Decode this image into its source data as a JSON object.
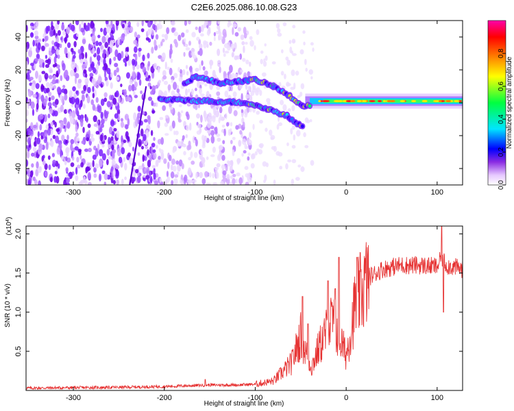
{
  "title": "C2E6.2025.086.10.08.G23",
  "chart_data": [
    {
      "type": "heatmap",
      "xlabel": "Height of straight line (km)",
      "ylabel": "Frequency (Hz)",
      "xlim": [
        -352,
        128
      ],
      "ylim": [
        -50,
        50
      ],
      "xticks": [
        -300,
        -200,
        -100,
        0,
        100
      ],
      "yticks": [
        -40,
        -20,
        0,
        20,
        40
      ],
      "colorbar": {
        "label": "Normalized spectral amplitude",
        "range": [
          0,
          1
        ],
        "ticks": [
          0.0,
          0.2,
          0.4,
          0.6,
          0.8
        ],
        "colormap": [
          "#ffffff",
          "#e6c8ff",
          "#8a2be2",
          "#0000ff",
          "#00e5ff",
          "#00ff40",
          "#ffff00",
          "#ff6a00",
          "#ff0000",
          "#ff00aa"
        ]
      },
      "ridges": [
        {
          "name": "",
          "points": [
            [
              -205,
              2
            ],
            [
              -150,
              1
            ],
            [
              -110,
              0
            ],
            [
              -85,
              -4
            ],
            [
              -65,
              -8
            ],
            [
              -48,
              -15
            ]
          ]
        },
        {
          "name": "",
          "points": [
            [
              -178,
              12
            ],
            [
              -165,
              16
            ],
            [
              -140,
              12
            ],
            [
              -100,
              14
            ],
            [
              -80,
              10
            ],
            [
              -62,
              4
            ],
            [
              -48,
              -2
            ],
            [
              -20,
              0
            ],
            [
              0,
              1
            ],
            [
              60,
              1
            ],
            [
              128,
              1
            ]
          ]
        }
      ],
      "grid": false
    },
    {
      "type": "line",
      "xlabel": "Height of straight line (km)",
      "ylabel": "SNR (10 * v/v)",
      "y_multiplier": "(x10^4)",
      "xlim": [
        -352,
        128
      ],
      "ylim": [
        0,
        2.1
      ],
      "xticks": [
        -300,
        -200,
        -100,
        0,
        100
      ],
      "yticks": [
        0.5,
        1.0,
        1.5,
        2.0
      ],
      "series": [
        {
          "name": "",
          "color": "#e63232",
          "envelope": [
            [
              -352,
              0.03
            ],
            [
              -250,
              0.04
            ],
            [
              -200,
              0.05
            ],
            [
              -150,
              0.07
            ],
            [
              -120,
              0.07
            ],
            [
              -100,
              0.08
            ],
            [
              -80,
              0.12
            ],
            [
              -60,
              0.35
            ],
            [
              -50,
              0.7
            ],
            [
              -45,
              0.5
            ],
            [
              -38,
              0.3
            ],
            [
              -30,
              0.55
            ],
            [
              -15,
              0.9
            ],
            [
              0,
              0.45
            ],
            [
              10,
              1.1
            ],
            [
              25,
              1.45
            ],
            [
              40,
              1.55
            ],
            [
              60,
              1.6
            ],
            [
              80,
              1.6
            ],
            [
              100,
              1.58
            ],
            [
              105,
              1.7
            ],
            [
              110,
              1.6
            ],
            [
              128,
              1.55
            ]
          ],
          "spikes": [
            [
              -48,
              1.2
            ],
            [
              -42,
              0.85
            ],
            [
              -20,
              1.4
            ],
            [
              -8,
              1.7
            ],
            [
              -12,
              1.3
            ],
            [
              12,
              1.7
            ],
            [
              105,
              2.1
            ],
            [
              107,
              1.0
            ]
          ]
        }
      ],
      "grid": false
    }
  ]
}
